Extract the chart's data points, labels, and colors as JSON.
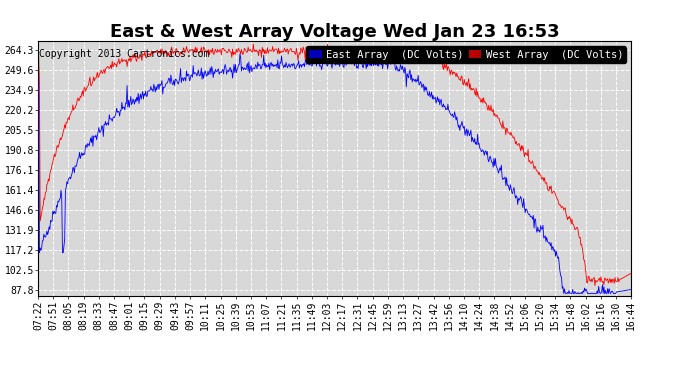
{
  "title": "East & West Array Voltage Wed Jan 23 16:53",
  "copyright": "Copyright 2013 Cartronics.com",
  "east_label": "East Array  (DC Volts)",
  "west_label": "West Array  (DC Volts)",
  "east_color": "#0000ff",
  "west_color": "#ff0000",
  "east_legend_bg": "#0000bb",
  "west_legend_bg": "#bb0000",
  "background_color": "#ffffff",
  "plot_bg_color": "#d8d8d8",
  "grid_color": "#ffffff",
  "y_ticks": [
    87.8,
    102.5,
    117.2,
    131.9,
    146.6,
    161.4,
    176.1,
    190.8,
    205.5,
    220.2,
    234.9,
    249.6,
    264.3
  ],
  "y_min": 83.0,
  "y_max": 270.5,
  "x_labels": [
    "07:22",
    "07:51",
    "08:05",
    "08:19",
    "08:33",
    "08:47",
    "09:01",
    "09:15",
    "09:29",
    "09:43",
    "09:57",
    "10:11",
    "10:25",
    "10:39",
    "10:53",
    "11:07",
    "11:21",
    "11:35",
    "11:49",
    "12:03",
    "12:17",
    "12:31",
    "12:45",
    "12:59",
    "13:13",
    "13:27",
    "13:42",
    "13:56",
    "14:10",
    "14:24",
    "14:38",
    "14:52",
    "15:06",
    "15:20",
    "15:34",
    "15:48",
    "16:02",
    "16:16",
    "16:30",
    "16:44"
  ],
  "title_fontsize": 13,
  "axis_fontsize": 7,
  "copyright_fontsize": 7,
  "legend_fontsize": 7.5
}
